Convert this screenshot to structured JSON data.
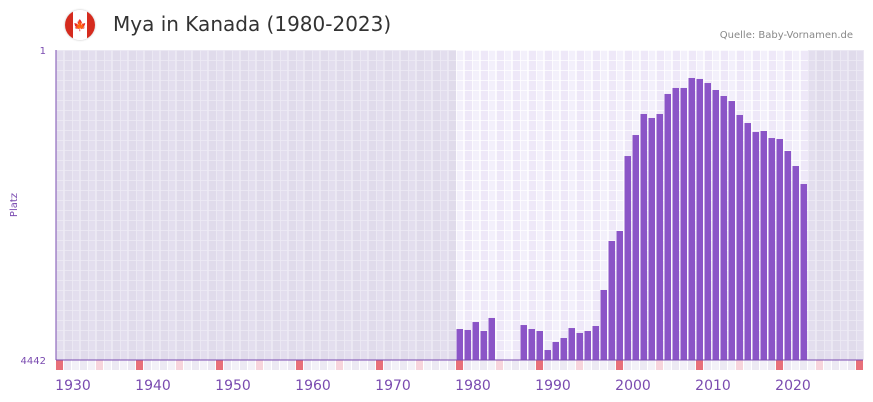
{
  "header": {
    "title": "Mya in Kanada (1980-2023)",
    "source": "Quelle: Baby-Vornamen.de",
    "flag_icon": "canada-flag-icon"
  },
  "chart_data": {
    "type": "bar",
    "title": "Mya in Kanada (1980-2023)",
    "ylabel": "Platz",
    "xlabel": "",
    "ylim": [
      4442,
      1
    ],
    "xlim": [
      1928,
      2028
    ],
    "y_ticks": [
      "1",
      "4442"
    ],
    "x_ticks": [
      "1930",
      "1940",
      "1950",
      "1960",
      "1970",
      "1980",
      "1990",
      "2000",
      "2010",
      "2020"
    ],
    "bar_color": "#8b55c7",
    "x": [
      1978,
      1979,
      1980,
      1981,
      1982,
      1986,
      1987,
      1988,
      1989,
      1990,
      1991,
      1992,
      1993,
      1994,
      1995,
      1996,
      1997,
      1998,
      1999,
      2000,
      2001,
      2002,
      2003,
      2004,
      2005,
      2006,
      2007,
      2008,
      2009,
      2010,
      2011,
      2012,
      2013,
      2014,
      2015,
      2016,
      2017,
      2018,
      2019,
      2020,
      2021
    ],
    "values": [
      3998,
      4012,
      3898,
      4026,
      3840,
      3941,
      3998,
      4026,
      4299,
      4184,
      4127,
      3984,
      4055,
      4026,
      3955,
      3439,
      2737,
      2594,
      1520,
      1219,
      918,
      975,
      918,
      631,
      545,
      545,
      402,
      416,
      474,
      574,
      660,
      732,
      932,
      1047,
      1176,
      1161,
      1262,
      1276,
      1448,
      1663,
      1921
    ]
  }
}
